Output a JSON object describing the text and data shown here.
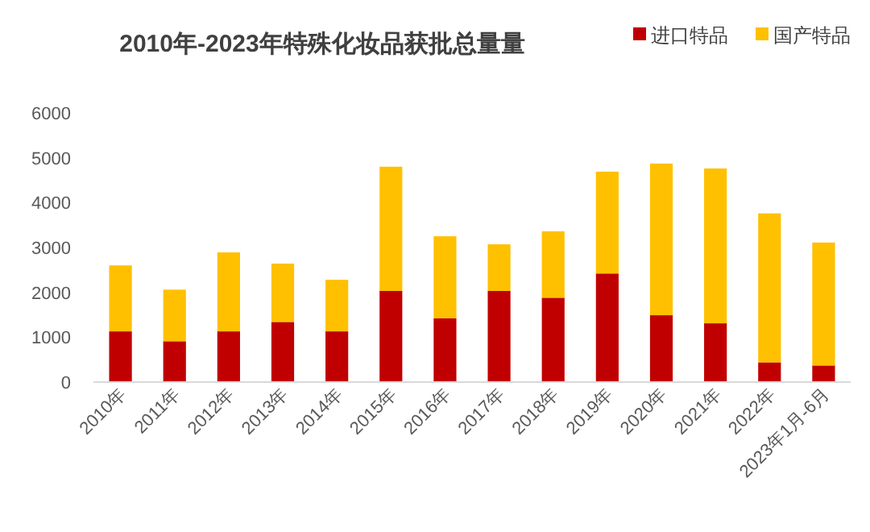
{
  "chart_data": {
    "type": "bar",
    "stacked": true,
    "title": "2010年-2023年特殊化妆品获批总量量",
    "categories": [
      "2010年",
      "2011年",
      "2012年",
      "2013年",
      "2014年",
      "2015年",
      "2016年",
      "2017年",
      "2018年",
      "2019年",
      "2020年",
      "2021年",
      "2022年",
      "2023年1月-6月"
    ],
    "series": [
      {
        "name": "进口特品",
        "color": "#c00000",
        "values": [
          1130,
          910,
          1130,
          1340,
          1130,
          2030,
          1420,
          2030,
          1880,
          2420,
          1490,
          1310,
          440,
          370
        ]
      },
      {
        "name": "国产特品",
        "color": "#ffc000",
        "values": [
          1470,
          1150,
          1760,
          1300,
          1150,
          2770,
          1830,
          1040,
          1480,
          2270,
          3380,
          3450,
          3320,
          2740
        ]
      }
    ],
    "ylim": [
      0,
      6000
    ],
    "yticks": [
      0,
      1000,
      2000,
      3000,
      4000,
      5000,
      6000
    ],
    "grid": false,
    "legend": "top right"
  }
}
